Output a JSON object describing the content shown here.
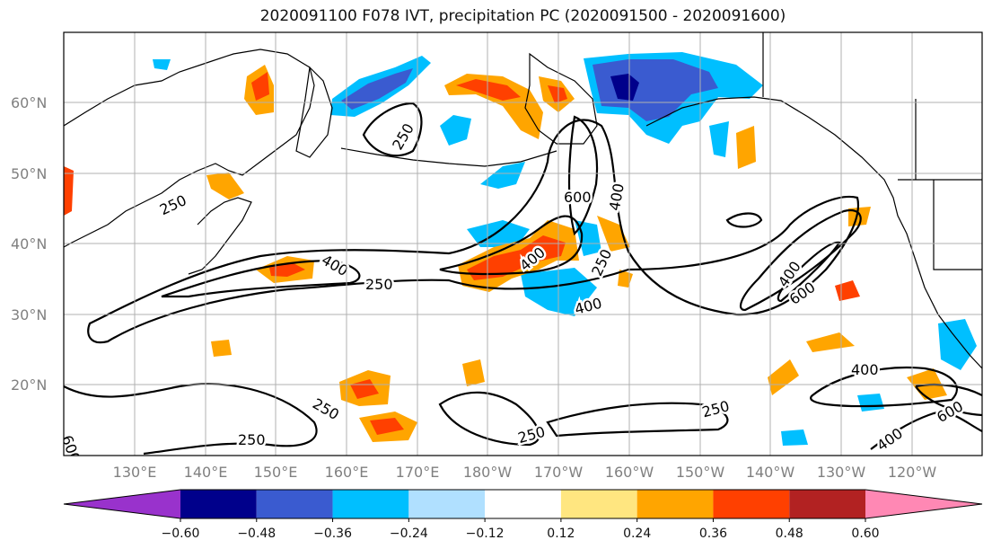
{
  "title": "2020091100 F078 IVT, precipitation PC (2020091500 - 2020091600)",
  "map": {
    "lat_labels": [
      "60°N",
      "50°N",
      "40°N",
      "30°N",
      "20°N"
    ],
    "lon_labels": [
      "130°E",
      "140°E",
      "150°E",
      "160°E",
      "170°E",
      "180°W",
      "170°W",
      "160°W",
      "150°W",
      "140°W",
      "130°W",
      "120°W"
    ],
    "contour_labels": [
      "250",
      "400",
      "600",
      "250",
      "400",
      "250",
      "400",
      "600",
      "400",
      "250",
      "400",
      "600",
      "400",
      "600",
      "400",
      "250",
      "250",
      "250",
      "250",
      "600",
      "250"
    ]
  },
  "colorbar": {
    "colors": [
      "#9932cc",
      "#00008b",
      "#3a5bd0",
      "#00bfff",
      "#b0e0ff",
      "#ffffff",
      "#ffe680",
      "#ffa500",
      "#ff4000",
      "#b22222",
      "#ff88b4"
    ],
    "tick_labels": [
      "−0.60",
      "−0.48",
      "−0.36",
      "−0.24",
      "−0.12",
      "0.12",
      "0.24",
      "0.36",
      "0.48",
      "0.60"
    ]
  }
}
